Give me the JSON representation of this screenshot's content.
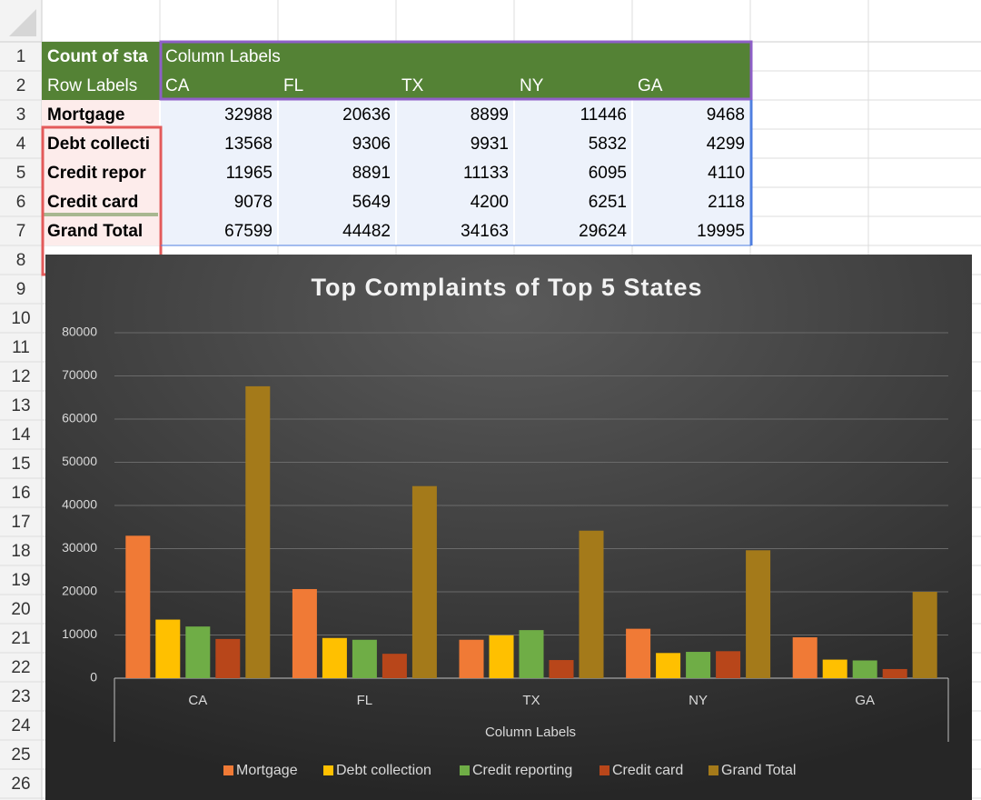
{
  "sheet": {
    "row_numbers": [
      1,
      2,
      3,
      4,
      5,
      6,
      7,
      8,
      9,
      10,
      11,
      12,
      13,
      14,
      15,
      16,
      17,
      18,
      19,
      20,
      21,
      22,
      23,
      24,
      25,
      26
    ],
    "pivot": {
      "corner": "Count of sta",
      "column_labels": "Column Labels",
      "row_labels": "Row Labels",
      "columns": [
        "CA",
        "FL",
        "TX",
        "NY",
        "GA"
      ],
      "rows": [
        {
          "label": "Mortgage",
          "values": [
            32988,
            20636,
            8899,
            11446,
            9468
          ]
        },
        {
          "label": "Debt collecti",
          "values": [
            13568,
            9306,
            9931,
            5832,
            4299
          ]
        },
        {
          "label": "Credit repor",
          "values": [
            11965,
            8891,
            11133,
            6095,
            4110
          ]
        },
        {
          "label": "Credit card",
          "values": [
            9078,
            5649,
            4200,
            6251,
            2118
          ]
        },
        {
          "label": "Grand Total",
          "values": [
            67599,
            44482,
            34163,
            29624,
            19995
          ]
        }
      ]
    }
  },
  "chart_data": {
    "type": "bar",
    "title": "Top Complaints of Top 5 States",
    "x_label": "Column Labels",
    "categories": [
      "CA",
      "FL",
      "TX",
      "NY",
      "GA"
    ],
    "series": [
      {
        "name": "Mortgage",
        "color": "#f07a36",
        "values": [
          32988,
          20636,
          8899,
          11446,
          9468
        ]
      },
      {
        "name": "Debt collection",
        "color": "#ffc000",
        "values": [
          13568,
          9306,
          9931,
          5832,
          4299
        ]
      },
      {
        "name": "Credit reporting",
        "color": "#6fad46",
        "values": [
          11965,
          8891,
          11133,
          6095,
          4110
        ]
      },
      {
        "name": "Credit card",
        "color": "#b8461a",
        "values": [
          9078,
          5649,
          4200,
          6251,
          2118
        ]
      },
      {
        "name": "Grand Total",
        "color": "#a47a1a",
        "values": [
          67599,
          44482,
          34163,
          29624,
          19995
        ]
      }
    ],
    "ylim": [
      0,
      80000
    ],
    "yticks": [
      0,
      10000,
      20000,
      30000,
      40000,
      50000,
      60000,
      70000,
      80000
    ],
    "grid": true,
    "legend": "bottom"
  }
}
